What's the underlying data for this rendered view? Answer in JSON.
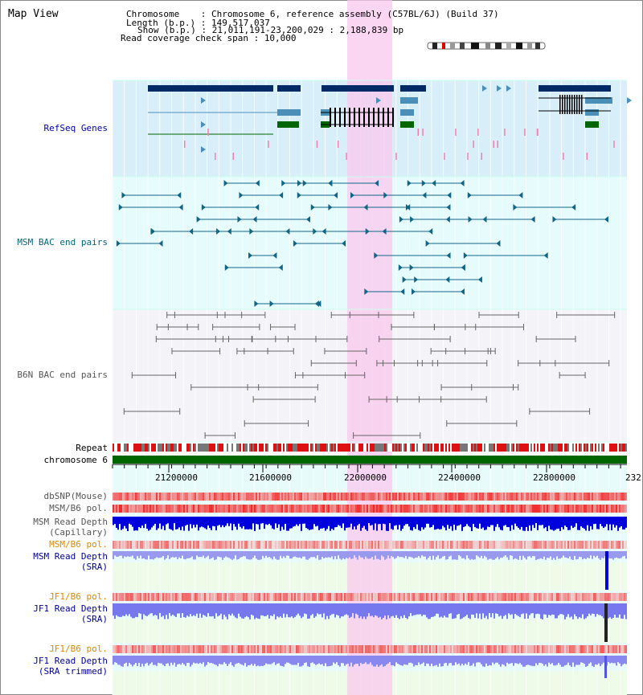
{
  "title": "Map View",
  "info": {
    "chromosome_label": "Chromosome    :",
    "chromosome_value": "Chromosome 6, reference assembly (C57BL/6J) (Build 37)",
    "length_label": "Length (b.p.) :",
    "length_value": "149,517,037",
    "show_label": "Show (b.p.) :",
    "show_value": "21,011,191-23,200,029 : 2,188,839 bp",
    "span_label": "Read coverage check span :",
    "span_value": "10,000"
  },
  "tracks": {
    "refseq": "RefSeq Genes",
    "msm_bac": "MSM BAC end pairs",
    "b6n_bac": "B6N BAC end pairs",
    "repeat": "Repeat",
    "chromosome": "chromosome 6",
    "dbsnp": "dbSNP(Mouse)",
    "msm_b6_pol_1": "MSM/B6 pol.",
    "msm_read_depth_cap_1": "MSM Read Depth",
    "msm_read_depth_cap_2": "(Capillary)",
    "msm_b6_pol_2": "MSM/B6 pol.",
    "msm_read_depth_sra_1": "MSM Read Depth",
    "msm_read_depth_sra_2": "(SRA)",
    "jf1_b6_pol_1": "JF1/B6 pol.",
    "jf1_read_depth_sra_1": "JF1 Read Depth",
    "jf1_read_depth_sra_2": "(SRA)",
    "jf1_b6_pol_2": "JF1/B6 pol.",
    "jf1_read_depth_trim_1": "JF1 Read Depth",
    "jf1_read_depth_trim_2": "(SRA trimmed)"
  },
  "axis": {
    "ticks": [
      "21200000",
      "21600000",
      "22000000",
      "22400000",
      "22800000",
      "232"
    ]
  },
  "colors": {
    "refseq_bg": "#d8effa",
    "bac_bg": "#e6fbfb",
    "b6n_bg": "#f4f4f8",
    "highlight": "#f9c8ee",
    "gene_dark": "#002a66",
    "gene_mid": "#4b8fb8",
    "gene_green": "#006600",
    "msm_bac": "#116688",
    "b6n_bac": "#666666",
    "depth_blue": "#0000dd",
    "depth_light": "#7777ee"
  }
}
